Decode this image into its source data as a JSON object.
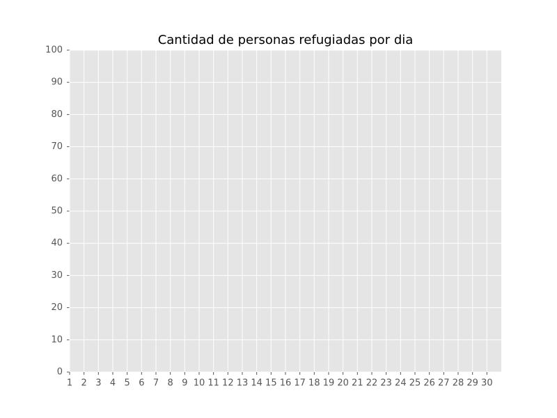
{
  "chart_data": {
    "type": "line",
    "title": "Cantidad de personas refugiadas por dia",
    "xlim": [
      1,
      31
    ],
    "xticks": [
      1,
      2,
      3,
      4,
      5,
      6,
      7,
      8,
      9,
      10,
      11,
      12,
      13,
      14,
      15,
      16,
      17,
      18,
      19,
      20,
      21,
      22,
      23,
      24,
      25,
      26,
      27,
      28,
      29,
      30
    ],
    "ylim": [
      0,
      100
    ],
    "yticks": [
      0,
      10,
      20,
      30,
      40,
      50,
      60,
      70,
      80,
      90,
      100
    ],
    "grid": true
  }
}
